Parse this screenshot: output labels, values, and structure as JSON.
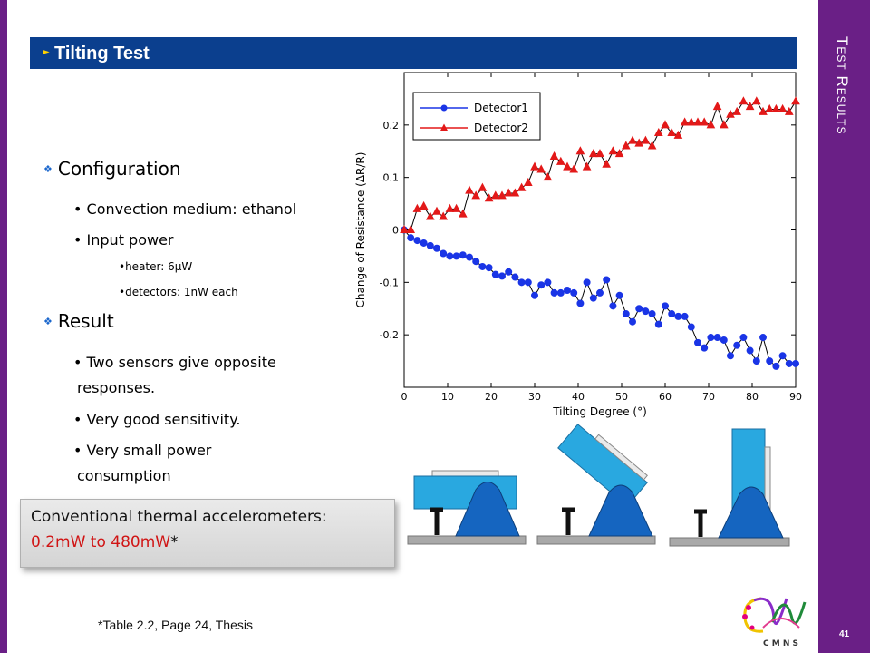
{
  "slide": {
    "section_title": "Test Results",
    "page_number": "41",
    "title": "Tilting Test",
    "footnote": "*Table 2.2, Page 24, Thesis",
    "logo_text": "C M N S"
  },
  "configuration": {
    "heading": "Configuration",
    "items": [
      "Convection medium: ethanol",
      "Input power"
    ],
    "sub_items": [
      "heater: 6µW",
      "detectors: 1nW each"
    ]
  },
  "result": {
    "heading": "Result",
    "items": [
      "Two sensors give opposite",
      "responses.",
      "Very good sensitivity.",
      "Very small power",
      "consumption"
    ]
  },
  "callout": {
    "line1": "Conventional thermal accelerometers:",
    "line2": "0.2mW to 480mW",
    "asterisk": "*"
  },
  "colors": {
    "accent_purple": "#6a1f86",
    "title_blue": "#0b3f8e",
    "detector1": "#1a35e6",
    "detector2": "#e31919",
    "callout_red": "#d01515"
  },
  "chart_data": {
    "type": "line",
    "xlabel": "Tilting Degree (°)",
    "ylabel": "Change of Resistance (ΔR/R)",
    "xlim": [
      0,
      90
    ],
    "ylim": [
      -0.3,
      0.3
    ],
    "xticks": [
      0,
      10,
      20,
      30,
      40,
      50,
      60,
      70,
      80,
      90
    ],
    "yticks": [
      -0.2,
      -0.1,
      0,
      0.1,
      0.2
    ],
    "ytick_labels": [
      "-0.2",
      "-0.1",
      "0",
      "0.1",
      "0.2"
    ],
    "legend_position": "top-left",
    "grid": false,
    "x": [
      0,
      1.5,
      3,
      4.5,
      6,
      7.5,
      9,
      10.5,
      12,
      13.5,
      15,
      16.5,
      18,
      19.5,
      21,
      22.5,
      24,
      25.5,
      27,
      28.5,
      30,
      31.5,
      33,
      34.5,
      36,
      37.5,
      39,
      40.5,
      42,
      43.5,
      45,
      46.5,
      48,
      49.5,
      51,
      52.5,
      54,
      55.5,
      57,
      58.5,
      60,
      61.5,
      63,
      64.5,
      66,
      67.5,
      69,
      70.5,
      72,
      73.5,
      75,
      76.5,
      78,
      79.5,
      81,
      82.5,
      84,
      85.5,
      87,
      88.5,
      90
    ],
    "series": [
      {
        "name": "Detector1",
        "marker": "circle",
        "values": [
          0,
          -0.015,
          -0.02,
          -0.025,
          -0.03,
          -0.035,
          -0.045,
          -0.05,
          -0.05,
          -0.048,
          -0.052,
          -0.06,
          -0.07,
          -0.072,
          -0.085,
          -0.088,
          -0.08,
          -0.09,
          -0.1,
          -0.1,
          -0.125,
          -0.105,
          -0.1,
          -0.12,
          -0.12,
          -0.115,
          -0.12,
          -0.14,
          -0.1,
          -0.13,
          -0.12,
          -0.095,
          -0.145,
          -0.125,
          -0.16,
          -0.175,
          -0.15,
          -0.155,
          -0.16,
          -0.18,
          -0.145,
          -0.16,
          -0.165,
          -0.165,
          -0.185,
          -0.215,
          -0.225,
          -0.205,
          -0.205,
          -0.21,
          -0.24,
          -0.22,
          -0.205,
          -0.23,
          -0.25,
          -0.205,
          -0.25,
          -0.26,
          -0.24,
          -0.255,
          -0.255
        ]
      },
      {
        "name": "Detector2",
        "marker": "triangle",
        "values": [
          0,
          0,
          0.04,
          0.045,
          0.025,
          0.035,
          0.025,
          0.04,
          0.04,
          0.03,
          0.075,
          0.065,
          0.08,
          0.06,
          0.065,
          0.065,
          0.07,
          0.07,
          0.08,
          0.09,
          0.12,
          0.115,
          0.1,
          0.14,
          0.13,
          0.12,
          0.115,
          0.15,
          0.12,
          0.145,
          0.145,
          0.125,
          0.15,
          0.145,
          0.16,
          0.17,
          0.165,
          0.17,
          0.16,
          0.185,
          0.2,
          0.185,
          0.18,
          0.205,
          0.205,
          0.205,
          0.205,
          0.2,
          0.235,
          0.2,
          0.22,
          0.225,
          0.245,
          0.235,
          0.245,
          0.225,
          0.23,
          0.23,
          0.23,
          0.225,
          0.245
        ]
      }
    ]
  }
}
